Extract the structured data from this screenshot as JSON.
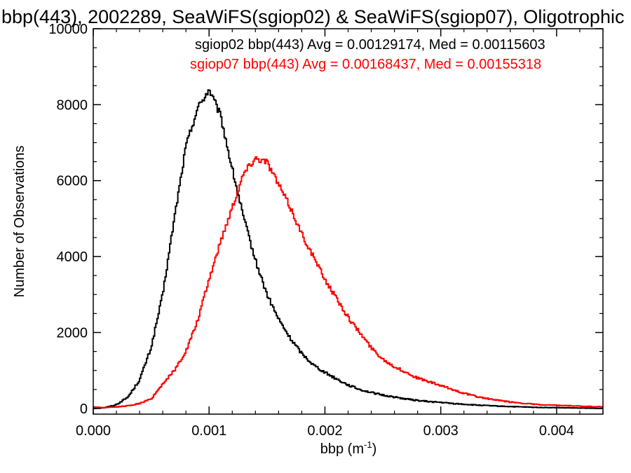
{
  "chart_data": {
    "type": "line",
    "title": "bbp(443), 2002289, SeaWiFS(sgiop02) & SeaWiFS(sgiop07), Oligotrophic",
    "xlabel": "bbp (m",
    "xlabel_sup": "-1",
    "xlabel_close": ")",
    "ylabel": "Number of Observations",
    "xlim": [
      0.0,
      0.0044
    ],
    "ylim": [
      -150,
      10000
    ],
    "xticks": [
      0.0,
      0.001,
      0.002,
      0.003,
      0.004
    ],
    "xtick_labels": [
      "0.000",
      "0.001",
      "0.002",
      "0.003",
      "0.004"
    ],
    "yticks": [
      0,
      2000,
      4000,
      6000,
      8000,
      10000
    ],
    "ytick_labels": [
      "0",
      "2000",
      "4000",
      "6000",
      "8000",
      "10000"
    ],
    "grid": false,
    "legend_position": "top-right",
    "x": [
      0.0,
      0.0001,
      0.0002,
      0.0003,
      0.0004,
      0.0005,
      0.0006,
      0.0007,
      0.0008,
      0.0009,
      0.001,
      0.0011,
      0.0012,
      0.0013,
      0.0014,
      0.0015,
      0.0016,
      0.0017,
      0.0018,
      0.0019,
      0.002,
      0.0021,
      0.0022,
      0.0023,
      0.0024,
      0.0025,
      0.0026,
      0.0027,
      0.0028,
      0.0029,
      0.003,
      0.0031,
      0.0032,
      0.0033,
      0.0034,
      0.0035,
      0.0036,
      0.0037,
      0.0038,
      0.0039,
      0.004,
      0.0041,
      0.0042,
      0.0043,
      0.0044
    ],
    "series": [
      {
        "name": "sgiop02",
        "legend": "sgiop02 bbp(443) Avg = 0.00129174, Med = 0.00115603",
        "color": "#000000",
        "values": [
          0,
          20,
          100,
          300,
          750,
          1600,
          3000,
          5000,
          6900,
          7900,
          8400,
          7700,
          6300,
          5000,
          3900,
          3000,
          2350,
          1850,
          1450,
          1150,
          950,
          780,
          620,
          500,
          420,
          350,
          300,
          250,
          210,
          180,
          160,
          130,
          110,
          90,
          75,
          60,
          50,
          40,
          30,
          25,
          20,
          15,
          10,
          5,
          0
        ]
      },
      {
        "name": "sgiop07",
        "legend": "sgiop07 bbp(443) Avg = 0.00168437, Med = 0.00155318",
        "color": "#ff0000",
        "values": [
          40,
          20,
          40,
          70,
          130,
          250,
          650,
          1000,
          1500,
          2300,
          3400,
          4400,
          5300,
          6200,
          6600,
          6500,
          5900,
          5300,
          4600,
          4000,
          3400,
          2900,
          2400,
          2000,
          1600,
          1300,
          1100,
          950,
          800,
          700,
          600,
          500,
          400,
          320,
          260,
          210,
          170,
          140,
          110,
          90,
          80,
          70,
          60,
          50,
          40
        ]
      }
    ]
  }
}
